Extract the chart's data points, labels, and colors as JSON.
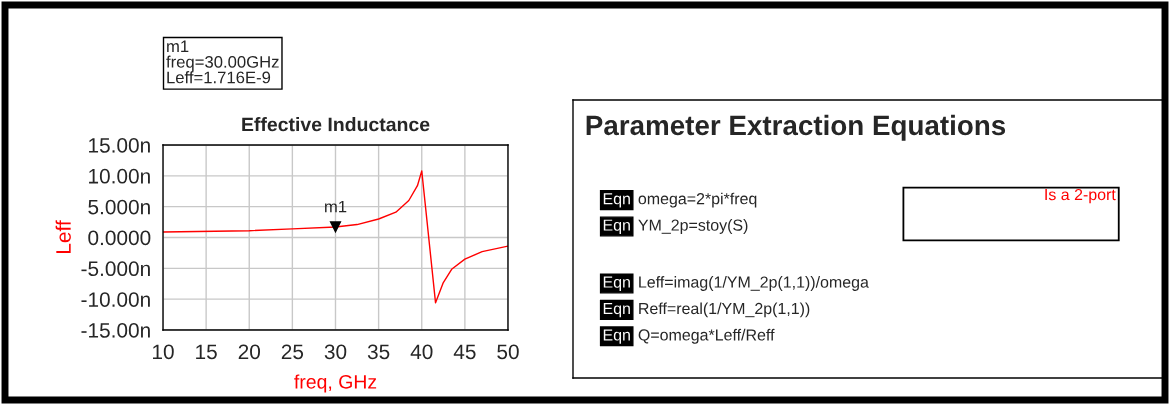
{
  "chart_data": [
    {
      "type": "line",
      "title": "Effective Inductance",
      "xlabel": "freq, GHz",
      "ylabel": "Leff",
      "x": [
        10,
        20,
        25,
        30,
        32.5,
        35,
        37,
        38.5,
        39.5,
        40,
        41.6,
        42.5,
        43.5,
        45,
        47,
        50
      ],
      "series": [
        {
          "color": "#ff0000",
          "values": [
            0.9,
            1.1,
            1.4,
            1.7,
            2.1,
            3.0,
            4.1,
            6.0,
            8.4,
            10.8,
            -10.6,
            -7.3,
            -5.1,
            -3.5,
            -2.3,
            -1.4
          ]
        }
      ],
      "xlim": [
        10,
        50
      ],
      "xticks": [
        10,
        15,
        20,
        25,
        30,
        35,
        40,
        45,
        50
      ],
      "ylim": [
        -15,
        15
      ],
      "yticks": [
        {
          "value": -15,
          "label": "-15.00n"
        },
        {
          "value": -10,
          "label": "-10.00n"
        },
        {
          "value": -5,
          "label": "-5.000n"
        },
        {
          "value": 0,
          "label": "0.0000"
        },
        {
          "value": 5,
          "label": "5.000n"
        },
        {
          "value": 10,
          "label": "10.00n"
        },
        {
          "value": 15,
          "label": "15.00n"
        }
      ],
      "grid": true,
      "legend": false,
      "annotations": [
        {
          "text": "m1",
          "x": 30,
          "y": 1.716
        },
        "m1\nfreq=30.00GHz\nLeff=1.716E-9"
      ]
    },
    {
      "type": "other",
      "title": "Parameter Extraction Equations",
      "annotations": [
        "Eqn",
        "omega=2*pi*freq",
        "Eqn",
        "YM_2p=stoy(S)",
        "Eqn",
        "Leff=imag(1/YM_2p(1,1))/omega",
        "Eqn",
        "Reff=real(1/YM_2p(1,1))",
        "Eqn",
        "Q=omega*Leff/Reff",
        "Is a 2-port"
      ]
    }
  ]
}
